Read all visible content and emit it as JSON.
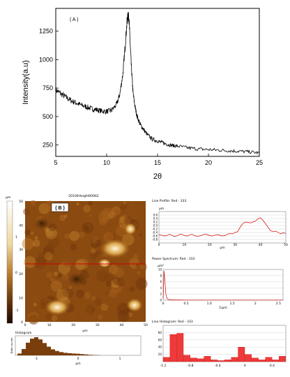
{
  "chart_data": [
    {
      "type": "line",
      "panel_label": "( A )",
      "xlabel": "2θ",
      "ylabel": "Intensity(a.u)",
      "xlim": [
        5,
        25
      ],
      "ylim": [
        150,
        1450
      ],
      "xticks": [
        5,
        10,
        15,
        20,
        25
      ],
      "yticks": [
        250,
        500,
        750,
        1000,
        1250
      ],
      "series": [
        {
          "x": [
            5.0,
            5.5,
            6.0,
            6.5,
            7.0,
            7.5,
            8.0,
            8.5,
            9.0,
            9.5,
            10.0,
            10.5,
            11.0,
            11.3,
            11.6,
            11.8,
            12.0,
            12.1,
            12.2,
            12.3,
            12.45,
            12.6,
            12.8,
            13.0,
            13.3,
            13.6,
            14.0,
            14.5,
            15.0,
            15.5,
            16.0,
            16.5,
            17.0,
            18.0,
            19.0,
            20.0,
            21.0,
            22.0,
            23.0,
            24.0,
            25.0
          ],
          "y": [
            735,
            700,
            670,
            640,
            620,
            600,
            585,
            570,
            560,
            548,
            545,
            555,
            610,
            700,
            880,
            1100,
            1330,
            1390,
            1360,
            1150,
            900,
            700,
            580,
            500,
            430,
            390,
            340,
            300,
            285,
            270,
            255,
            245,
            240,
            225,
            215,
            210,
            205,
            200,
            195,
            190,
            180
          ]
        }
      ]
    },
    {
      "type": "heatmap",
      "panel_label": "( B )",
      "title": "20100Height00062",
      "colorbar_unit": "μm",
      "colorbar_ticks": [
        "1",
        "0",
        "-1"
      ],
      "x_axis_label": "μm",
      "x_ticks": [
        "0",
        "10",
        "20",
        "30",
        "40",
        "50"
      ],
      "y_ticks": [
        "50",
        "40",
        "30",
        "20",
        "10",
        "0"
      ],
      "profile_row_fraction": 0.52
    },
    {
      "type": "bar",
      "title": "Histogram",
      "ylabel": "Data counts",
      "xlabel": "μm",
      "xlim": [
        -1.5,
        1.5
      ],
      "x_ticks": [
        "-1",
        "0",
        "1"
      ],
      "x": [
        -1.4,
        -1.3,
        -1.2,
        -1.1,
        -1.0,
        -0.9,
        -0.8,
        -0.7,
        -0.6,
        -0.5,
        -0.4,
        -0.3,
        -0.2,
        -0.1,
        0.0,
        0.1,
        0.2,
        0.3,
        0.4,
        0.5
      ],
      "values": [
        0.1,
        0.35,
        0.7,
        0.92,
        1.0,
        0.88,
        0.68,
        0.48,
        0.33,
        0.24,
        0.18,
        0.14,
        0.12,
        0.1,
        0.09,
        0.07,
        0.05,
        0.03,
        0.02,
        0.01
      ]
    },
    {
      "type": "line",
      "title": "Line Profile: Red - 333",
      "ylabel": "μm",
      "xlabel": "μm",
      "xlim": [
        0,
        50
      ],
      "ylim": [
        -1.0,
        0.8
      ],
      "yticks": [
        0.6,
        0.4,
        0.2,
        0.0,
        -0.2,
        -0.4,
        -0.6,
        -0.8
      ],
      "xticks": [
        0,
        10,
        20,
        30,
        40,
        50
      ],
      "x": [
        0,
        1,
        2,
        3,
        4,
        5,
        6,
        7,
        8,
        9,
        10,
        11,
        12,
        13,
        14,
        15,
        16,
        17,
        18,
        19,
        20,
        21,
        22,
        23,
        24,
        25,
        26,
        27,
        28,
        29,
        30,
        31,
        32,
        33,
        34,
        35,
        36,
        37,
        38,
        39,
        40,
        41,
        42,
        43,
        44,
        45,
        46,
        47,
        48,
        49,
        50
      ],
      "y": [
        -0.52,
        -0.55,
        -0.6,
        -0.58,
        -0.5,
        -0.55,
        -0.62,
        -0.6,
        -0.52,
        -0.5,
        -0.58,
        -0.6,
        -0.55,
        -0.5,
        -0.58,
        -0.62,
        -0.6,
        -0.55,
        -0.5,
        -0.52,
        -0.58,
        -0.6,
        -0.55,
        -0.52,
        -0.56,
        -0.6,
        -0.58,
        -0.5,
        -0.45,
        -0.48,
        -0.4,
        -0.35,
        -0.1,
        0.1,
        0.2,
        0.18,
        0.15,
        0.2,
        0.25,
        0.38,
        0.45,
        0.3,
        0.1,
        -0.1,
        -0.3,
        -0.35,
        -0.32,
        -0.4,
        -0.48,
        -0.42,
        -0.45
      ]
    },
    {
      "type": "line",
      "title": "Power Spectrum: Red - 333",
      "ylabel": "μm²",
      "xlabel": "1/μm",
      "xlim": [
        0,
        2.6
      ],
      "ylim": [
        0,
        10
      ],
      "yticks": [
        10,
        8,
        6,
        4,
        2,
        0
      ],
      "xticks": [
        0,
        0.5,
        1.0,
        1.5,
        2,
        2.5
      ],
      "xtick_labels": [
        "0",
        "0.5",
        "1.0",
        "1.5",
        "2",
        "2.5"
      ],
      "x": [
        0,
        0.02,
        0.04,
        0.06,
        0.08,
        0.1,
        0.14,
        0.2,
        0.3,
        0.5,
        1.0,
        1.5,
        2.0,
        2.6
      ],
      "y": [
        0.5,
        9.5,
        6.0,
        2.0,
        0.8,
        0.3,
        0.2,
        0.1,
        0.1,
        0.05,
        0.05,
        0.05,
        0.05,
        0.05
      ]
    },
    {
      "type": "bar",
      "title": "Line Histogram: Red - 333",
      "xlim": [
        -1.2,
        0.6
      ],
      "ylim": [
        0,
        100
      ],
      "yticks": [
        80,
        60,
        40,
        20
      ],
      "xticks": [
        -1.2,
        -0.8,
        -0.4,
        0.0,
        0.4
      ],
      "xtick_labels": [
        "-1.2",
        "-0.8",
        "-0.4",
        "0",
        "0.4"
      ],
      "bin_width": 0.1,
      "x": [
        -1.2,
        -1.1,
        -1.0,
        -0.9,
        -0.8,
        -0.7,
        -0.6,
        -0.5,
        -0.4,
        -0.3,
        -0.2,
        -0.1,
        0.0,
        0.1,
        0.2,
        0.3,
        0.4,
        0.5
      ],
      "values": [
        12,
        75,
        78,
        18,
        10,
        8,
        15,
        5,
        3,
        5,
        12,
        40,
        20,
        10,
        5,
        12,
        5,
        15
      ]
    }
  ]
}
